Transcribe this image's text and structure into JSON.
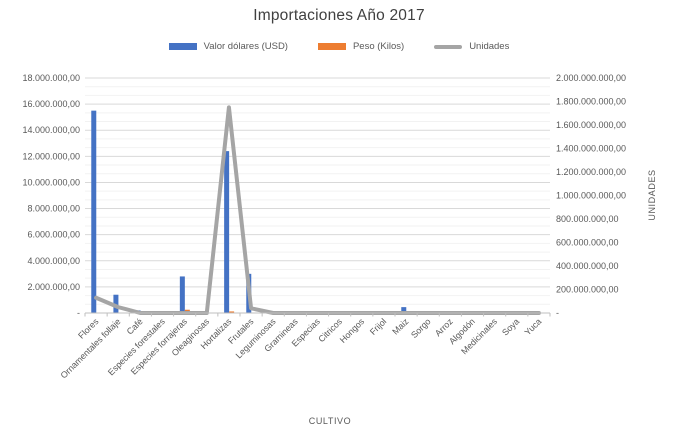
{
  "title": "Importaciones Año 2017",
  "legend": [
    {
      "label": "Valor dólares (USD)",
      "color": "#4472C4",
      "shape": "bar"
    },
    {
      "label": "Peso (Kilos)",
      "color": "#ED7D31",
      "shape": "bar"
    },
    {
      "label": "Unidades",
      "color": "#A5A5A5",
      "shape": "line"
    }
  ],
  "chart_data": {
    "type": "bar",
    "subtype": "combo-bar-line-dual-axis",
    "title": "Importaciones Año 2017",
    "xlabel": "CULTIVO",
    "ylabel_left": "",
    "ylabel_right": "UNIDADES",
    "grid": true,
    "legend_position": "top",
    "categories": [
      "Flores",
      "Ornamentales follaje",
      "Café",
      "Especies forestales",
      "Especies forrajeras",
      "Oleaginosas",
      "Hortalizas",
      "Frutales",
      "Leguminosas",
      "Gramineas",
      "Especias",
      "Citricos",
      "Hongos",
      "Frijol",
      "Maiz",
      "Sorgo",
      "Arroz",
      "Algodón",
      "Medicinales",
      "Soya",
      "Yuca"
    ],
    "series": [
      {
        "name": "Valor dólares (USD)",
        "type": "bar",
        "axis": "left",
        "color": "#4472C4",
        "values": [
          15500000,
          1400000,
          200000,
          0,
          2800000,
          0,
          12400000,
          3000000,
          0,
          0,
          0,
          0,
          0,
          0,
          450000,
          0,
          0,
          0,
          0,
          0,
          0
        ]
      },
      {
        "name": "Peso (Kilos)",
        "type": "bar",
        "axis": "left",
        "color": "#ED7D31",
        "values": [
          0,
          0,
          0,
          0,
          250000,
          0,
          120000,
          0,
          0,
          0,
          0,
          0,
          0,
          0,
          0,
          0,
          0,
          0,
          0,
          0,
          0
        ]
      },
      {
        "name": "Unidades",
        "type": "line",
        "axis": "right",
        "color": "#A5A5A5",
        "values": [
          130000000,
          50000000,
          0,
          0,
          0,
          0,
          1750000000,
          40000000,
          0,
          0,
          0,
          0,
          0,
          0,
          0,
          0,
          0,
          0,
          0,
          0,
          0
        ]
      }
    ],
    "left_axis": {
      "min": 0,
      "max": 18000000,
      "step": 2000000,
      "tick_labels": [
        "-",
        "2.000.000,00",
        "4.000.000,00",
        "6.000.000,00",
        "8.000.000,00",
        "10.000.000,00",
        "12.000.000,00",
        "14.000.000,00",
        "16.000.000,00",
        "18.000.000,00"
      ]
    },
    "right_axis": {
      "min": 0,
      "max": 2000000000,
      "step": 200000000,
      "tick_labels": [
        "-",
        "200.000.000,00",
        "400.000.000,00",
        "600.000.000,00",
        "800.000.000,00",
        "1.000.000.000,00",
        "1.200.000.000,00",
        "1.400.000.000,00",
        "1.600.000.000,00",
        "1.800.000.000,00",
        "2.000.000.000,00"
      ]
    }
  },
  "colors": {
    "gridline_major": "#D9D9D9",
    "gridline_minor": "#F2F2F2",
    "axis_line": "#BFBFBF",
    "axis_text": "#595959",
    "title_text": "#404040"
  }
}
